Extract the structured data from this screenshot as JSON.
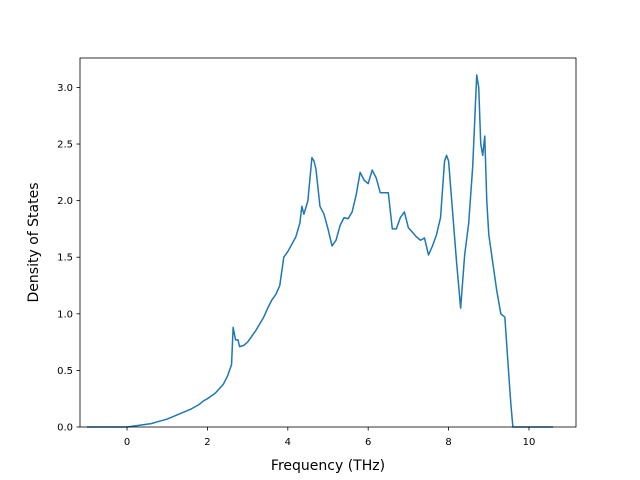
{
  "chart_data": {
    "type": "line",
    "title": "",
    "xlabel": "Frequency (THz)",
    "ylabel": "Density of States",
    "xlim": [
      -1.17,
      11.17
    ],
    "ylim": [
      0,
      3.26
    ],
    "xticks": [
      0,
      2,
      4,
      6,
      8,
      10
    ],
    "xtick_labels": [
      "0",
      "2",
      "4",
      "6",
      "8",
      "10"
    ],
    "yticks": [
      0.0,
      0.5,
      1.0,
      1.5,
      2.0,
      2.5,
      3.0
    ],
    "ytick_labels": [
      "0.0",
      "0.5",
      "1.0",
      "1.5",
      "2.0",
      "2.5",
      "3.0"
    ],
    "grid": false,
    "line_color": "#1f77b4",
    "series": [
      {
        "x": [
          -1.0,
          -0.5,
          0.0,
          0.2,
          0.4,
          0.6,
          0.8,
          1.0,
          1.2,
          1.4,
          1.6,
          1.8,
          1.9,
          2.0,
          2.2,
          2.4,
          2.5,
          2.6,
          2.64,
          2.7,
          2.76,
          2.8,
          2.9,
          3.0,
          3.2,
          3.4,
          3.5,
          3.6,
          3.7,
          3.8,
          3.9,
          4.0,
          4.2,
          4.3,
          4.35,
          4.4,
          4.5,
          4.6,
          4.65,
          4.7,
          4.8,
          4.9,
          5.0,
          5.1,
          5.2,
          5.3,
          5.4,
          5.5,
          5.6,
          5.7,
          5.8,
          5.9,
          6.0,
          6.1,
          6.2,
          6.3,
          6.4,
          6.5,
          6.6,
          6.7,
          6.8,
          6.9,
          7.0,
          7.1,
          7.2,
          7.3,
          7.4,
          7.5,
          7.6,
          7.7,
          7.8,
          7.9,
          7.95,
          8.0,
          8.1,
          8.2,
          8.3,
          8.4,
          8.5,
          8.6,
          8.7,
          8.75,
          8.8,
          8.85,
          8.9,
          8.95,
          9.0,
          9.1,
          9.2,
          9.3,
          9.4,
          9.5,
          9.55,
          9.6,
          9.7,
          9.8,
          10.0,
          10.2,
          10.4,
          10.6
        ],
        "y": [
          0.0,
          0.0,
          0.0,
          0.01,
          0.02,
          0.03,
          0.05,
          0.07,
          0.1,
          0.13,
          0.16,
          0.2,
          0.23,
          0.25,
          0.3,
          0.38,
          0.45,
          0.55,
          0.88,
          0.77,
          0.77,
          0.71,
          0.72,
          0.75,
          0.85,
          0.97,
          1.05,
          1.12,
          1.17,
          1.25,
          1.5,
          1.55,
          1.68,
          1.8,
          1.95,
          1.88,
          2.0,
          2.38,
          2.35,
          2.28,
          1.95,
          1.88,
          1.75,
          1.6,
          1.65,
          1.78,
          1.85,
          1.84,
          1.9,
          2.05,
          2.25,
          2.18,
          2.15,
          2.27,
          2.2,
          2.07,
          2.07,
          2.07,
          1.75,
          1.75,
          1.85,
          1.9,
          1.76,
          1.72,
          1.68,
          1.65,
          1.67,
          1.52,
          1.6,
          1.7,
          1.85,
          2.35,
          2.4,
          2.35,
          1.9,
          1.45,
          1.05,
          1.52,
          1.8,
          2.3,
          3.11,
          3.0,
          2.5,
          2.4,
          2.57,
          2.0,
          1.7,
          1.45,
          1.2,
          1.0,
          0.97,
          0.45,
          0.2,
          0.0,
          0.0,
          0.0,
          0.0,
          0.0,
          0.0,
          0.0
        ]
      }
    ]
  }
}
